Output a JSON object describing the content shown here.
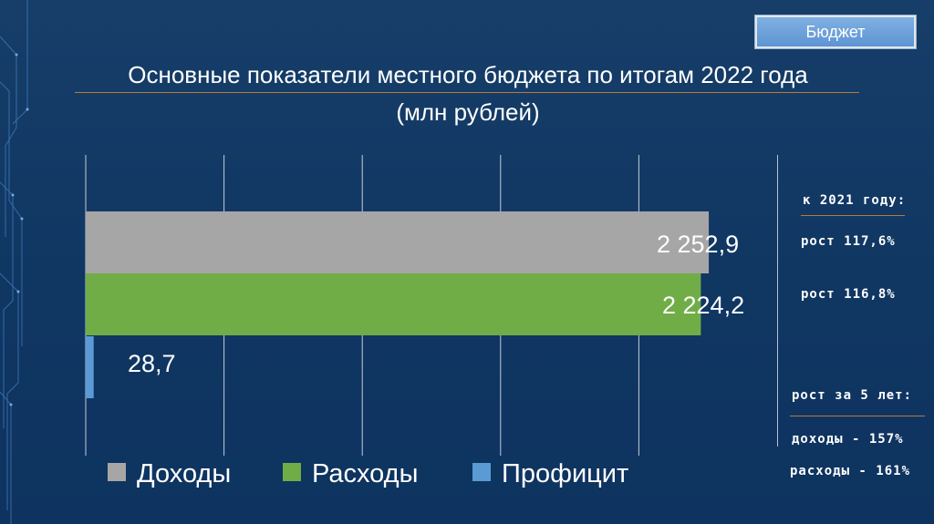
{
  "header": {
    "badge": "Бюджет"
  },
  "title": "Основные показатели местного бюджета по итогам 2022 года",
  "subtitle": "(млн рублей)",
  "chart_data": {
    "type": "bar",
    "orientation": "horizontal",
    "title": "Основные показатели местного бюджета по итогам 2022 года",
    "subtitle": "(млн рублей)",
    "series": [
      {
        "name": "Доходы",
        "value": 2252.9,
        "label": "2 252,9",
        "color": "#a6a6a6"
      },
      {
        "name": "Расходы",
        "value": 2224.2,
        "label": "2 224,2",
        "color": "#70ad47"
      },
      {
        "name": "Профицит",
        "value": 28.7,
        "label": "28,7",
        "color": "#5b9bd5"
      }
    ],
    "xlim": [
      0,
      2500
    ],
    "grid": true,
    "legend": "bottom"
  },
  "side_notes": {
    "header1": "к 2021 году:",
    "growth_income": "рост 117,6%",
    "growth_expense": "рост 116,8%",
    "header2": "рост за 5 лет:",
    "five_year_income": "доходы - 157%",
    "five_year_expense": "расходы - 161%"
  }
}
